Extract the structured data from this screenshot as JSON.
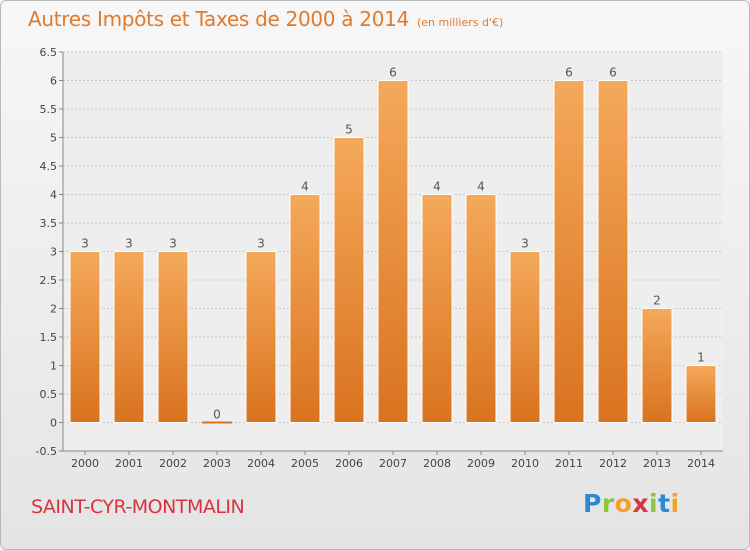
{
  "chart_data": {
    "type": "bar",
    "title": "Autres Impôts et Taxes de 2000 à 2014",
    "subtitle": "(en milliers d'€)",
    "categories": [
      "2000",
      "2001",
      "2002",
      "2003",
      "2004",
      "2005",
      "2006",
      "2007",
      "2008",
      "2009",
      "2010",
      "2011",
      "2012",
      "2013",
      "2014"
    ],
    "values": [
      3,
      3,
      3,
      0,
      3,
      4,
      5,
      6,
      4,
      4,
      3,
      6,
      6,
      2,
      1
    ],
    "value_labels": [
      "3",
      "3",
      "3",
      "0",
      "3",
      "4",
      "5",
      "6",
      "4",
      "4",
      "3",
      "6",
      "6",
      "2",
      "1"
    ],
    "ylim": [
      -0.5,
      6.5
    ],
    "yticks": [
      "6.5",
      "6",
      "5.5",
      "5",
      "4.5",
      "4",
      "3.5",
      "3",
      "2.5",
      "2",
      "1.5",
      "1",
      "0.5",
      "0",
      "-0.5"
    ],
    "grid": true,
    "colors": {
      "bar_light": "#f4a95a",
      "bar_dark": "#d9731f",
      "grid": "#c8c8c8"
    }
  },
  "commune": "SAINT-CYR-MONTMALIN",
  "logo": {
    "letters": [
      "P",
      "r",
      "o",
      "x",
      "i",
      "t",
      "i"
    ],
    "colors": [
      "#2a8ad6",
      "#8cc63f",
      "#f3a12b",
      "#d8343f",
      "#8cc63f",
      "#2a8ad6",
      "#f3a12b"
    ]
  }
}
